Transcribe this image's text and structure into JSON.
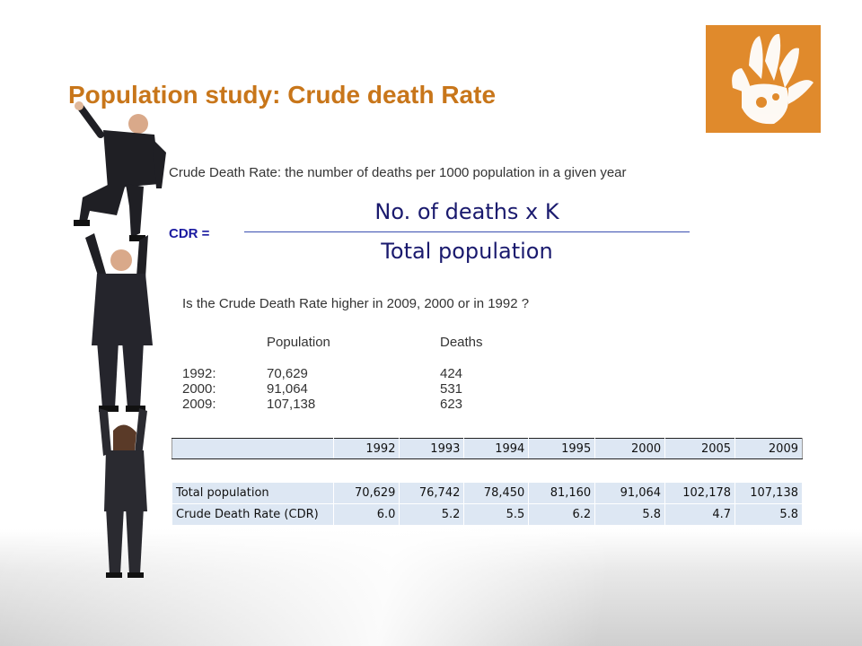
{
  "slide": {
    "title": "Population study: Crude death Rate",
    "definition": "Crude Death Rate: the number of deaths per 1000 population in a given year",
    "formula": {
      "label": "CDR =",
      "numerator": "No. of deaths x K",
      "denominator": "Total population"
    },
    "question": "Is the Crude Death Rate higher in 2009, 2000 or in 1992 ?"
  },
  "mini_table": {
    "headers": [
      "Population",
      "Deaths"
    ],
    "rows": [
      {
        "year": "1992:",
        "population": "70,629",
        "deaths": "424"
      },
      {
        "year": "2000:",
        "population": "91,064",
        "deaths": "531"
      },
      {
        "year": "2009:",
        "population": "107,138",
        "deaths": "623"
      }
    ]
  },
  "data_table": {
    "years": [
      "1992",
      "1993",
      "1994",
      "1995",
      "2000",
      "2005",
      "2009"
    ],
    "rows": [
      {
        "label": "Total population",
        "values": [
          "70,629",
          "76,742",
          "78,450",
          "81,160",
          "91,064",
          "102,178",
          "107,138"
        ]
      },
      {
        "label": "Crude Death Rate (CDR)",
        "values": [
          "6.0",
          "5.2",
          "5.5",
          "6.2",
          "5.8",
          "4.7",
          "5.8"
        ]
      }
    ]
  },
  "colors": {
    "title": "#c8761a",
    "logo": "#e08a2c",
    "cdr_label": "#1a1aa0",
    "formula_line": "#3a4fb0",
    "table_fill": "#dde7f3"
  },
  "icons": {
    "logo": "handprint-icon",
    "illustration": "people-stack-illustration"
  }
}
